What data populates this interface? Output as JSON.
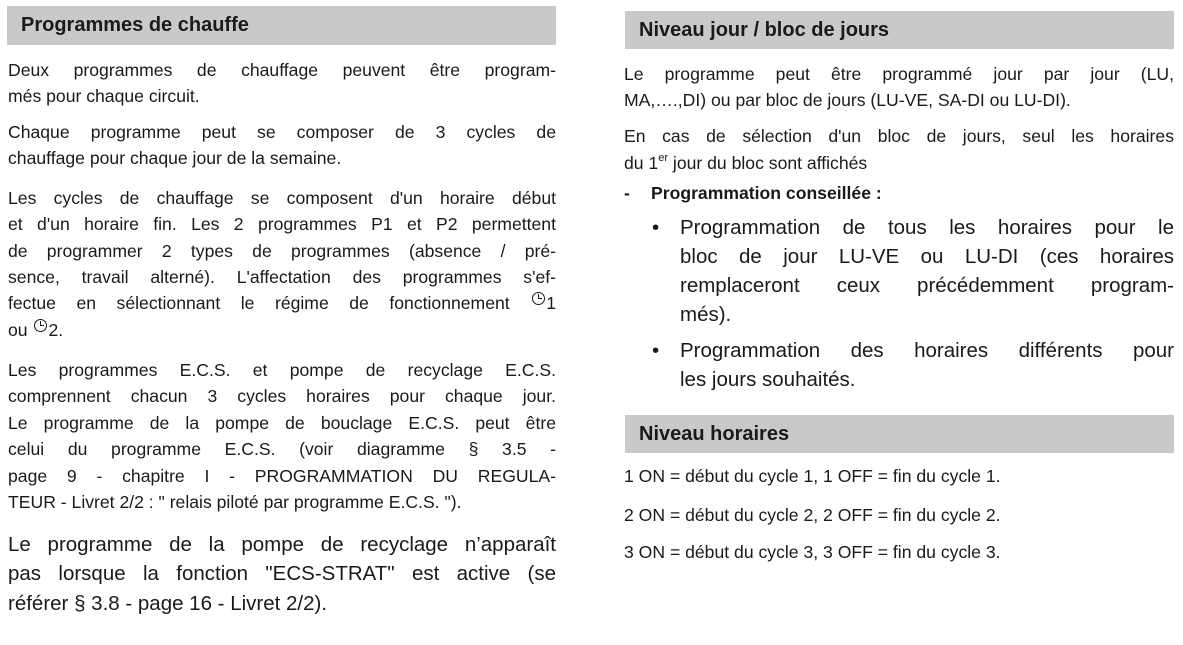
{
  "left": {
    "heading": "Programmes de chauffe",
    "p1": [
      "Deux programmes de chauffage peuvent être program-",
      "més pour chaque circuit."
    ],
    "p2": [
      "Chaque programme peut se composer de 3 cycles de",
      "chauffage pour chaque jour de la semaine."
    ],
    "p3": [
      "Les cycles de chauffage se composent d'un horaire début",
      "et d'un horaire fin. Les 2 programmes P1 et P2 permettent",
      "de programmer 2 types de programmes (absence / pré-",
      "sence, travail alterné). L'affectation des programmes s'ef-",
      "fectue en sélectionnant le régime de fonctionnement ",
      "1",
      "ou ",
      "2."
    ],
    "p4": [
      "Les programmes E.C.S. et pompe de recyclage E.C.S.",
      "comprennent chacun 3 cycles horaires pour chaque jour.",
      "Le programme de la pompe de bouclage E.C.S. peut être",
      "celui du programme E.C.S. (voir diagramme § 3.5 -",
      "page 9 - chapitre I - PROGRAMMATION DU REGULA-",
      "TEUR - Livret 2/2 : \" relais piloté par programme E.C.S. \")."
    ],
    "p5": [
      "Le programme de la pompe de recyclage n’apparaît",
      "pas lorsque la fonction \"ECS-STRAT\" est active (se",
      "référer § 3.8 - page 16 - Livret 2/2)."
    ]
  },
  "right": {
    "heading1": "Niveau jour / bloc de jours",
    "p1": [
      "Le programme peut être programmé jour par jour (LU,",
      "MA,….,DI) ou par bloc de jours (LU-VE, SA-DI ou LU-DI)."
    ],
    "p2": [
      "En cas de sélection d'un bloc de jours, seul les horaires",
      "du 1",
      "er",
      " jour du bloc sont affichés"
    ],
    "dash": "-",
    "advice": "Programmation conseillée :",
    "bullet": "•",
    "b1": [
      "Programmation de tous les horaires pour le",
      "bloc de jour LU-VE ou LU-DI (ces horaires",
      "remplaceront ceux précédemment program-",
      "més)."
    ],
    "b2": [
      "Programmation des horaires différents pour",
      "les jours souhaités."
    ],
    "heading2": "Niveau horaires",
    "cycles": [
      "1 ON = début du cycle 1, 1 OFF = fin du cycle 1.",
      "2 ON = début du cycle 2, 2 OFF = fin du cycle 2.",
      "3 ON = début du cycle 3, 3 OFF = fin du cycle 3."
    ]
  }
}
